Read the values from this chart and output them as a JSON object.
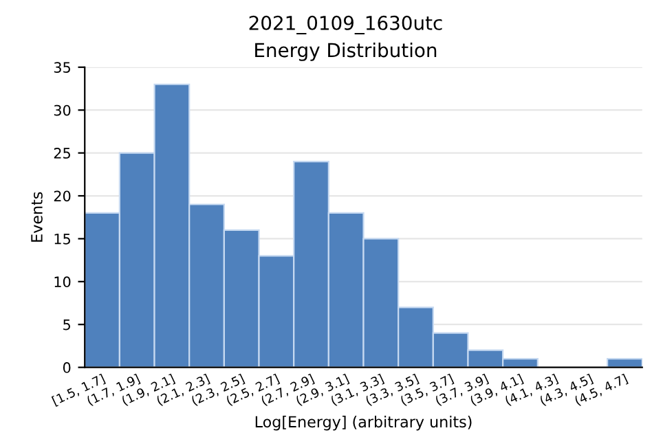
{
  "chart_data": {
    "type": "bar",
    "title": "2021_0109_1630utc",
    "subtitle": "Energy Distribution",
    "xlabel": "Log[Energy] (arbitrary units)",
    "ylabel": "Events",
    "categories": [
      "[1.5, 1.7]",
      "(1.7, 1.9]",
      "(1.9, 2.1]",
      "(2.1, 2.3]",
      "(2.3, 2.5]",
      "(2.5, 2.7]",
      "(2.7, 2.9]",
      "(2.9, 3.1]",
      "(3.1, 3.3]",
      "(3.3, 3.5]",
      "(3.5, 3.7]",
      "(3.7, 3.9]",
      "(3.9, 4.1]",
      "(4.1, 4.3]",
      "(4.3, 4.5]",
      "(4.5, 4.7]"
    ],
    "values": [
      18,
      25,
      33,
      19,
      16,
      13,
      24,
      18,
      15,
      7,
      4,
      2,
      1,
      0,
      0,
      1
    ],
    "color": "#4f81bd",
    "ylim": [
      0,
      35
    ],
    "yticks": [
      0,
      5,
      10,
      15,
      20,
      25,
      30,
      35
    ],
    "grid": "y"
  }
}
